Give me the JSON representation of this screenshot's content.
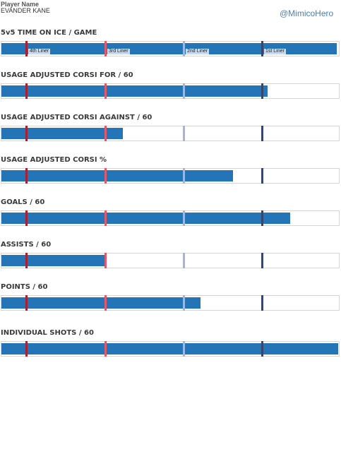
{
  "header": {
    "label": "Player Name",
    "player": "EVANDER KANE",
    "handle": "@MimicoHero"
  },
  "colors": {
    "bar": "#2475b8",
    "tier_4th": "#a82035",
    "tier_3rd": "#e05a6e",
    "tier_2nd": "#a9b3d9",
    "tier_1st": "#36466e"
  },
  "chart_data": {
    "type": "bar",
    "orientation": "horizontal",
    "scale": [
      0,
      1
    ],
    "tier_labels": [
      "4th Liner",
      "3rd Liner",
      "2nd Liner",
      "1st Liner"
    ],
    "tier_positions": [
      0.073,
      0.306,
      0.537,
      0.769
    ],
    "metrics": [
      {
        "title": "5v5 TIME ON ICE / GAME",
        "value": 0.99
      },
      {
        "title": "USAGE ADJUSTED CORSI FOR / 60",
        "value": 0.785
      },
      {
        "title": "USAGE ADJUSTED CORSI AGAINST / 60",
        "value": 0.358
      },
      {
        "title": "USAGE ADJUSTED CORSI %",
        "value": 0.683
      },
      {
        "title": "GOALS / 60",
        "value": 0.853
      },
      {
        "title": "ASSISTS / 60",
        "value": 0.306
      },
      {
        "title": "POINTS / 60",
        "value": 0.588
      },
      {
        "title": "INDIVIDUAL SHOTS / 60",
        "value": 0.994
      }
    ]
  }
}
